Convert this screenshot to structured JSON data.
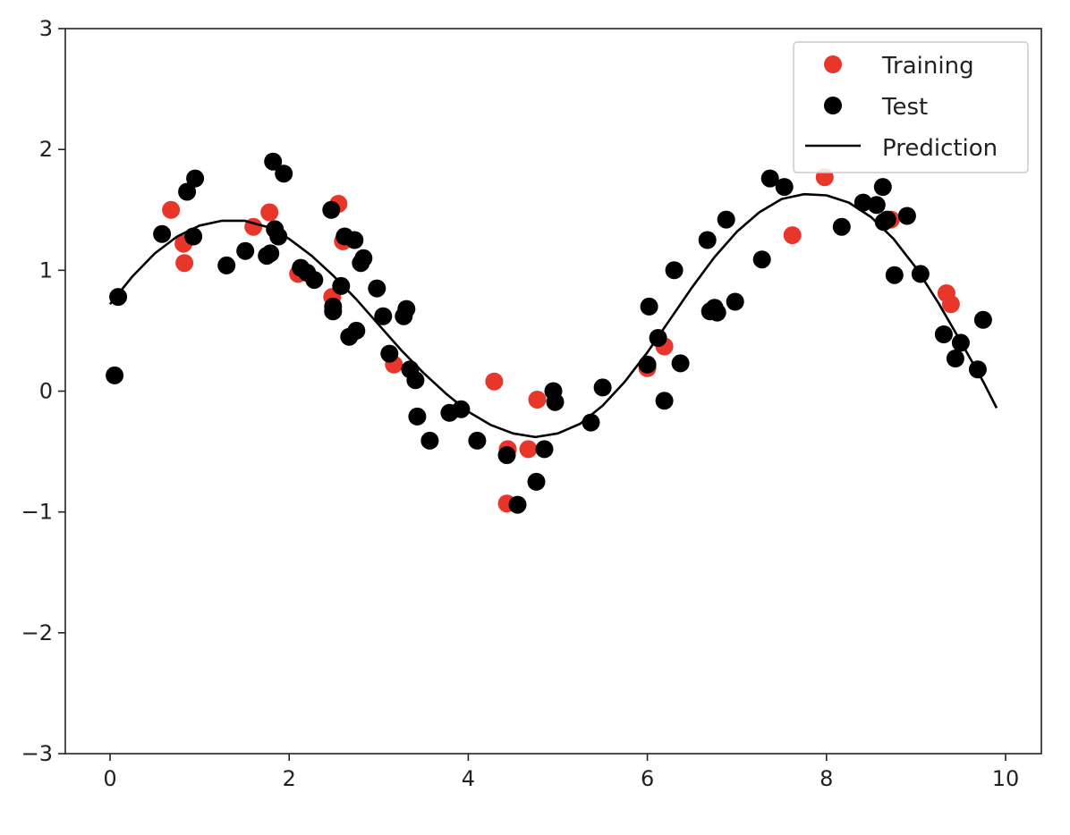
{
  "chart_data": {
    "type": "scatter",
    "title": "",
    "xlabel": "",
    "ylabel": "",
    "xlim": [
      -0.5,
      10.4
    ],
    "ylim": [
      -3,
      3
    ],
    "x_ticks": [
      0,
      2,
      4,
      6,
      8,
      10
    ],
    "y_ticks": [
      -3,
      -2,
      -1,
      0,
      1,
      2,
      3
    ],
    "x_tick_labels": [
      "0",
      "2",
      "4",
      "6",
      "8",
      "10"
    ],
    "y_tick_labels": [
      "−3",
      "−2",
      "−1",
      "0",
      "1",
      "2",
      "3"
    ],
    "grid": false,
    "legend_position": "top-right",
    "colors": {
      "training": "#e8362a",
      "test": "#000000",
      "prediction": "#000000"
    },
    "series": [
      {
        "name": "Training",
        "kind": "scatter",
        "x": [
          0.68,
          0.82,
          0.83,
          1.6,
          1.78,
          2.1,
          2.48,
          2.55,
          2.6,
          3.17,
          4.29,
          4.43,
          4.44,
          4.67,
          4.77,
          6.0,
          6.19,
          7.62,
          7.98,
          8.72,
          9.34,
          9.39
        ],
        "y": [
          1.5,
          1.22,
          1.06,
          1.36,
          1.48,
          0.97,
          0.78,
          1.55,
          1.24,
          0.22,
          0.08,
          -0.93,
          -0.48,
          -0.48,
          -0.07,
          0.19,
          0.37,
          1.29,
          1.77,
          1.42,
          0.81,
          0.72
        ]
      },
      {
        "name": "Test",
        "kind": "scatter",
        "x": [
          0.05,
          0.09,
          0.58,
          0.86,
          0.93,
          0.95,
          1.3,
          1.51,
          1.75,
          1.79,
          1.82,
          1.84,
          1.88,
          1.94,
          2.13,
          2.2,
          2.28,
          2.47,
          2.49,
          2.49,
          2.58,
          2.62,
          2.67,
          2.73,
          2.75,
          2.8,
          2.83,
          2.98,
          3.05,
          3.12,
          3.28,
          3.31,
          3.35,
          3.41,
          3.43,
          3.57,
          3.79,
          3.92,
          4.1,
          4.43,
          4.55,
          4.76,
          4.85,
          4.95,
          4.97,
          5.37,
          5.5,
          6.0,
          6.02,
          6.12,
          6.19,
          6.3,
          6.37,
          6.67,
          6.7,
          6.75,
          6.78,
          6.88,
          6.98,
          7.28,
          7.37,
          7.53,
          8.17,
          8.41,
          8.56,
          8.63,
          8.64,
          8.68,
          8.76,
          8.9,
          9.05,
          9.31,
          9.44,
          9.5,
          9.69,
          9.75
        ],
        "y": [
          0.13,
          0.78,
          1.3,
          1.65,
          1.28,
          1.76,
          1.04,
          1.16,
          1.12,
          1.14,
          1.9,
          1.34,
          1.28,
          1.8,
          1.02,
          0.98,
          0.92,
          1.5,
          0.7,
          0.66,
          0.87,
          1.28,
          0.45,
          1.25,
          0.5,
          1.06,
          1.1,
          0.85,
          0.62,
          0.31,
          0.62,
          0.68,
          0.18,
          0.09,
          -0.21,
          -0.41,
          -0.18,
          -0.15,
          -0.41,
          -0.53,
          -0.94,
          -0.75,
          -0.48,
          0.0,
          -0.09,
          -0.26,
          0.03,
          0.22,
          0.7,
          0.44,
          -0.08,
          1.0,
          0.23,
          1.25,
          0.66,
          0.69,
          0.65,
          1.42,
          0.74,
          1.09,
          1.76,
          1.69,
          1.36,
          1.56,
          1.54,
          1.69,
          1.4,
          1.42,
          0.96,
          1.45,
          0.97,
          0.47,
          0.27,
          0.4,
          0.18,
          0.59
        ]
      },
      {
        "name": "Prediction",
        "kind": "line",
        "x": [
          0.0,
          0.25,
          0.5,
          0.75,
          1.0,
          1.25,
          1.5,
          1.75,
          2.0,
          2.25,
          2.5,
          2.75,
          3.0,
          3.25,
          3.5,
          3.75,
          4.0,
          4.25,
          4.5,
          4.75,
          5.0,
          5.25,
          5.5,
          5.75,
          6.0,
          6.25,
          6.5,
          6.75,
          7.0,
          7.25,
          7.5,
          7.75,
          8.0,
          8.25,
          8.5,
          8.75,
          9.0,
          9.25,
          9.5,
          9.75,
          9.9
        ],
        "y": [
          0.72,
          0.95,
          1.14,
          1.28,
          1.37,
          1.41,
          1.41,
          1.36,
          1.26,
          1.12,
          0.95,
          0.76,
          0.55,
          0.34,
          0.15,
          -0.02,
          -0.17,
          -0.28,
          -0.35,
          -0.38,
          -0.35,
          -0.27,
          -0.12,
          0.08,
          0.32,
          0.59,
          0.86,
          1.11,
          1.32,
          1.48,
          1.59,
          1.63,
          1.62,
          1.56,
          1.44,
          1.26,
          1.02,
          0.73,
          0.41,
          0.08,
          -0.14
        ]
      }
    ]
  }
}
